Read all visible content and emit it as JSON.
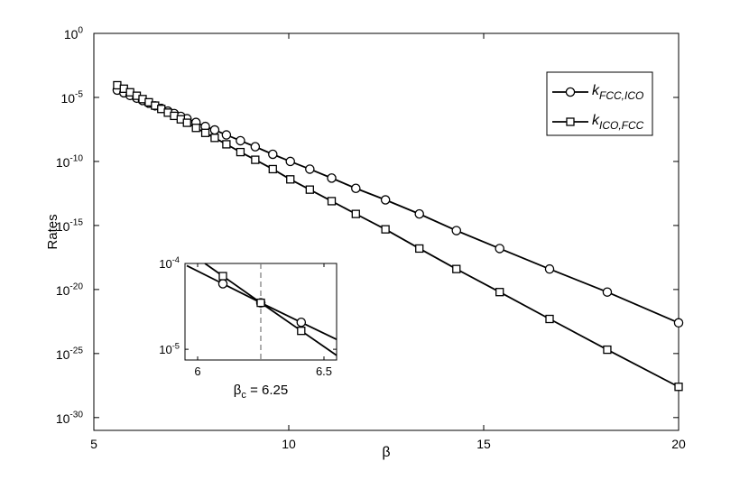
{
  "chart_data": [
    {
      "type": "line",
      "xlabel": "β",
      "ylabel": "Rates",
      "xlim": [
        5,
        20
      ],
      "ylim_exponents": [
        -31,
        0
      ],
      "yscale": "log",
      "xticks": [
        "5",
        "10",
        "15",
        "20"
      ],
      "yticks": [
        {
          "base": "10",
          "exp": "0"
        },
        {
          "base": "10",
          "exp": "-5"
        },
        {
          "base": "10",
          "exp": "-10"
        },
        {
          "base": "10",
          "exp": "-15"
        },
        {
          "base": "10",
          "exp": "-20"
        },
        {
          "base": "10",
          "exp": "-25"
        },
        {
          "base": "10",
          "exp": "-30"
        }
      ],
      "legend_position": "top-right",
      "series": [
        {
          "name_main": "k",
          "name_sub": "FCC,ICO",
          "marker": "circle",
          "x": [
            5.6,
            5.77,
            5.93,
            6.1,
            6.25,
            6.41,
            6.57,
            6.73,
            6.9,
            7.06,
            7.23,
            7.39,
            7.62,
            7.86,
            8.1,
            8.4,
            8.76,
            9.14,
            9.59,
            10.04,
            10.54,
            11.1,
            11.72,
            12.48,
            13.35,
            14.3,
            15.41,
            16.69,
            18.17,
            20.0
          ],
          "y_log10": [
            -4.43,
            -4.64,
            -4.85,
            -5.06,
            -5.24,
            -5.45,
            -5.66,
            -5.86,
            -6.07,
            -6.26,
            -6.48,
            -6.66,
            -6.95,
            -7.27,
            -7.54,
            -7.93,
            -8.38,
            -8.85,
            -9.44,
            -10.0,
            -10.6,
            -11.3,
            -12.1,
            -13.0,
            -14.1,
            -15.4,
            -16.8,
            -18.4,
            -20.2,
            -22.6
          ]
        },
        {
          "name_main": "k",
          "name_sub": "ICO,FCC",
          "marker": "square",
          "x": [
            5.6,
            5.77,
            5.93,
            6.1,
            6.25,
            6.41,
            6.57,
            6.73,
            6.9,
            7.06,
            7.23,
            7.39,
            7.62,
            7.86,
            8.1,
            8.4,
            8.76,
            9.14,
            9.59,
            10.04,
            10.54,
            11.1,
            11.72,
            12.48,
            13.35,
            14.3,
            15.41,
            16.69,
            18.17,
            20.0
          ],
          "y_log10": [
            -4.05,
            -4.32,
            -4.6,
            -4.87,
            -5.13,
            -5.38,
            -5.64,
            -5.9,
            -6.19,
            -6.44,
            -6.71,
            -6.98,
            -7.38,
            -7.77,
            -8.16,
            -8.66,
            -9.27,
            -9.87,
            -10.6,
            -11.4,
            -12.2,
            -13.1,
            -14.1,
            -15.3,
            -16.8,
            -18.4,
            -20.2,
            -22.3,
            -24.7,
            -27.6
          ]
        }
      ]
    },
    {
      "type": "line",
      "yscale": "log",
      "xlim": [
        5.95,
        6.55
      ],
      "ylim": [
        7.5e-06,
        0.0001
      ],
      "xticks": [
        "6",
        "6.5"
      ],
      "yticks": [
        {
          "base": "10",
          "exp": "-4"
        },
        {
          "base": "10",
          "exp": "-5"
        }
      ],
      "annotation": {
        "main": "β",
        "sub": "c",
        "rest": " = 6.25"
      },
      "vline_x": 6.25,
      "series": [
        {
          "marker": "circle",
          "x": [
            6.1,
            6.25,
            6.41
          ],
          "y": [
            5.8e-05,
            3.48e-05,
            2.06e-05
          ]
        },
        {
          "marker": "square",
          "x": [
            6.1,
            6.25,
            6.41
          ],
          "y": [
            7.12e-05,
            3.48e-05,
            1.64e-05
          ]
        }
      ]
    }
  ]
}
